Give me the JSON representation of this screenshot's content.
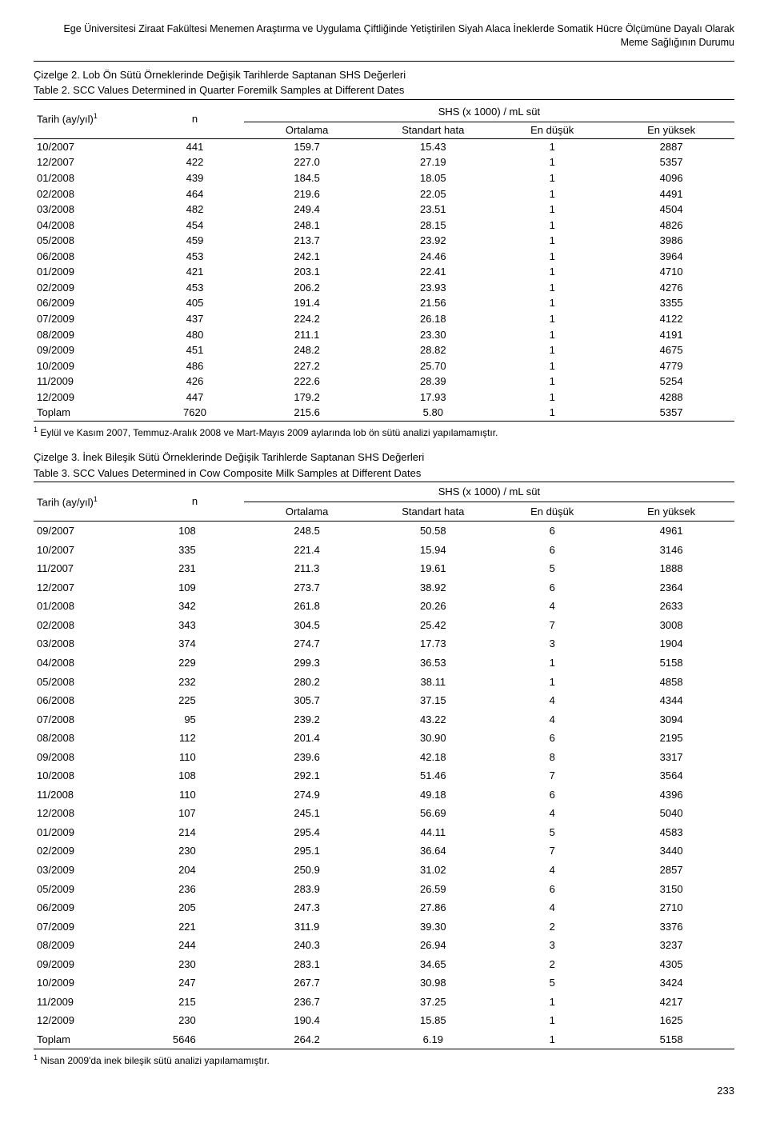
{
  "header": {
    "line1": "Ege Üniversitesi Ziraat Fakültesi Menemen Araştırma ve Uygulama Çiftliğinde Yetiştirilen Siyah Alaca İneklerde Somatik Hücre Ölçümüne Dayalı Olarak",
    "line2": "Meme Sağlığının Durumu"
  },
  "table2": {
    "caption_tr": "Çizelge 2. Lob Ön Sütü Örneklerinde Değişik Tarihlerde Saptanan SHS Değerleri",
    "caption_en": "Table 2. SCC Values Determined in Quarter Foremilk Samples at Different Dates",
    "group_header": "SHS (x 1000) / mL süt",
    "col_date": "Tarih (ay/yıl)",
    "col_n": "n",
    "col_ort": "Ortalama",
    "col_sh": "Standart hata",
    "col_min": "En düşük",
    "col_max": "En yüksek",
    "rows": [
      {
        "d": "10/2007",
        "n": "441",
        "o": "159.7",
        "s": "15.43",
        "mn": "1",
        "mx": "2887"
      },
      {
        "d": "12/2007",
        "n": "422",
        "o": "227.0",
        "s": "27.19",
        "mn": "1",
        "mx": "5357"
      },
      {
        "d": "01/2008",
        "n": "439",
        "o": "184.5",
        "s": "18.05",
        "mn": "1",
        "mx": "4096"
      },
      {
        "d": "02/2008",
        "n": "464",
        "o": "219.6",
        "s": "22.05",
        "mn": "1",
        "mx": "4491"
      },
      {
        "d": "03/2008",
        "n": "482",
        "o": "249.4",
        "s": "23.51",
        "mn": "1",
        "mx": "4504"
      },
      {
        "d": "04/2008",
        "n": "454",
        "o": "248.1",
        "s": "28.15",
        "mn": "1",
        "mx": "4826"
      },
      {
        "d": "05/2008",
        "n": "459",
        "o": "213.7",
        "s": "23.92",
        "mn": "1",
        "mx": "3986"
      },
      {
        "d": "06/2008",
        "n": "453",
        "o": "242.1",
        "s": "24.46",
        "mn": "1",
        "mx": "3964"
      },
      {
        "d": "01/2009",
        "n": "421",
        "o": "203.1",
        "s": "22.41",
        "mn": "1",
        "mx": "4710"
      },
      {
        "d": "02/2009",
        "n": "453",
        "o": "206.2",
        "s": "23.93",
        "mn": "1",
        "mx": "4276"
      },
      {
        "d": "06/2009",
        "n": "405",
        "o": "191.4",
        "s": "21.56",
        "mn": "1",
        "mx": "3355"
      },
      {
        "d": "07/2009",
        "n": "437",
        "o": "224.2",
        "s": "26.18",
        "mn": "1",
        "mx": "4122"
      },
      {
        "d": "08/2009",
        "n": "480",
        "o": "211.1",
        "s": "23.30",
        "mn": "1",
        "mx": "4191"
      },
      {
        "d": "09/2009",
        "n": "451",
        "o": "248.2",
        "s": "28.82",
        "mn": "1",
        "mx": "4675"
      },
      {
        "d": "10/2009",
        "n": "486",
        "o": "227.2",
        "s": "25.70",
        "mn": "1",
        "mx": "4779"
      },
      {
        "d": "11/2009",
        "n": "426",
        "o": "222.6",
        "s": "28.39",
        "mn": "1",
        "mx": "5254"
      },
      {
        "d": "12/2009",
        "n": "447",
        "o": "179.2",
        "s": "17.93",
        "mn": "1",
        "mx": "4288"
      },
      {
        "d": "Toplam",
        "n": "7620",
        "o": "215.6",
        "s": "5.80",
        "mn": "1",
        "mx": "5357"
      }
    ],
    "footnote": " Eylül ve Kasım 2007, Temmuz-Aralık 2008 ve Mart-Mayıs 2009 aylarında lob ön sütü analizi yapılamamıştır."
  },
  "table3": {
    "caption_tr": "Çizelge 3. İnek Bileşik Sütü Örneklerinde Değişik Tarihlerde Saptanan SHS Değerleri",
    "caption_en": "Table 3. SCC Values Determined in Cow Composite Milk Samples at Different Dates",
    "group_header": "SHS (x 1000) / mL süt",
    "col_date": "Tarih (ay/yıl)",
    "col_n": "n",
    "col_ort": "Ortalama",
    "col_sh": "Standart hata",
    "col_min": "En düşük",
    "col_max": "En yüksek",
    "rows": [
      {
        "d": "09/2007",
        "n": "108",
        "o": "248.5",
        "s": "50.58",
        "mn": "6",
        "mx": "4961"
      },
      {
        "d": "10/2007",
        "n": "335",
        "o": "221.4",
        "s": "15.94",
        "mn": "6",
        "mx": "3146"
      },
      {
        "d": "11/2007",
        "n": "231",
        "o": "211.3",
        "s": "19.61",
        "mn": "5",
        "mx": "1888"
      },
      {
        "d": "12/2007",
        "n": "109",
        "o": "273.7",
        "s": "38.92",
        "mn": "6",
        "mx": "2364"
      },
      {
        "d": "01/2008",
        "n": "342",
        "o": "261.8",
        "s": "20.26",
        "mn": "4",
        "mx": "2633"
      },
      {
        "d": "02/2008",
        "n": "343",
        "o": "304.5",
        "s": "25.42",
        "mn": "7",
        "mx": "3008"
      },
      {
        "d": "03/2008",
        "n": "374",
        "o": "274.7",
        "s": "17.73",
        "mn": "3",
        "mx": "1904"
      },
      {
        "d": "04/2008",
        "n": "229",
        "o": "299.3",
        "s": "36.53",
        "mn": "1",
        "mx": "5158"
      },
      {
        "d": "05/2008",
        "n": "232",
        "o": "280.2",
        "s": "38.11",
        "mn": "1",
        "mx": "4858"
      },
      {
        "d": "06/2008",
        "n": "225",
        "o": "305.7",
        "s": "37.15",
        "mn": "4",
        "mx": "4344"
      },
      {
        "d": "07/2008",
        "n": "95",
        "o": "239.2",
        "s": "43.22",
        "mn": "4",
        "mx": "3094"
      },
      {
        "d": "08/2008",
        "n": "112",
        "o": "201.4",
        "s": "30.90",
        "mn": "6",
        "mx": "2195"
      },
      {
        "d": "09/2008",
        "n": "110",
        "o": "239.6",
        "s": "42.18",
        "mn": "8",
        "mx": "3317"
      },
      {
        "d": "10/2008",
        "n": "108",
        "o": "292.1",
        "s": "51.46",
        "mn": "7",
        "mx": "3564"
      },
      {
        "d": "11/2008",
        "n": "110",
        "o": "274.9",
        "s": "49.18",
        "mn": "6",
        "mx": "4396"
      },
      {
        "d": "12/2008",
        "n": "107",
        "o": "245.1",
        "s": "56.69",
        "mn": "4",
        "mx": "5040"
      },
      {
        "d": "01/2009",
        "n": "214",
        "o": "295.4",
        "s": "44.11",
        "mn": "5",
        "mx": "4583"
      },
      {
        "d": "02/2009",
        "n": "230",
        "o": "295.1",
        "s": "36.64",
        "mn": "7",
        "mx": "3440"
      },
      {
        "d": "03/2009",
        "n": "204",
        "o": "250.9",
        "s": "31.02",
        "mn": "4",
        "mx": "2857"
      },
      {
        "d": "05/2009",
        "n": "236",
        "o": "283.9",
        "s": "26.59",
        "mn": "6",
        "mx": "3150"
      },
      {
        "d": "06/2009",
        "n": "205",
        "o": "247.3",
        "s": "27.86",
        "mn": "4",
        "mx": "2710"
      },
      {
        "d": "07/2009",
        "n": "221",
        "o": "311.9",
        "s": "39.30",
        "mn": "2",
        "mx": "3376"
      },
      {
        "d": "08/2009",
        "n": "244",
        "o": "240.3",
        "s": "26.94",
        "mn": "3",
        "mx": "3237"
      },
      {
        "d": "09/2009",
        "n": "230",
        "o": "283.1",
        "s": "34.65",
        "mn": "2",
        "mx": "4305"
      },
      {
        "d": "10/2009",
        "n": "247",
        "o": "267.7",
        "s": "30.98",
        "mn": "5",
        "mx": "3424"
      },
      {
        "d": "11/2009",
        "n": "215",
        "o": "236.7",
        "s": "37.25",
        "mn": "1",
        "mx": "4217"
      },
      {
        "d": "12/2009",
        "n": "230",
        "o": "190.4",
        "s": "15.85",
        "mn": "1",
        "mx": "1625"
      },
      {
        "d": "Toplam",
        "n": "5646",
        "o": "264.2",
        "s": "6.19",
        "mn": "1",
        "mx": "5158"
      }
    ],
    "footnote": " Nisan 2009'da inek bileşik sütü analizi yapılamamıştır."
  },
  "page_number": "233"
}
